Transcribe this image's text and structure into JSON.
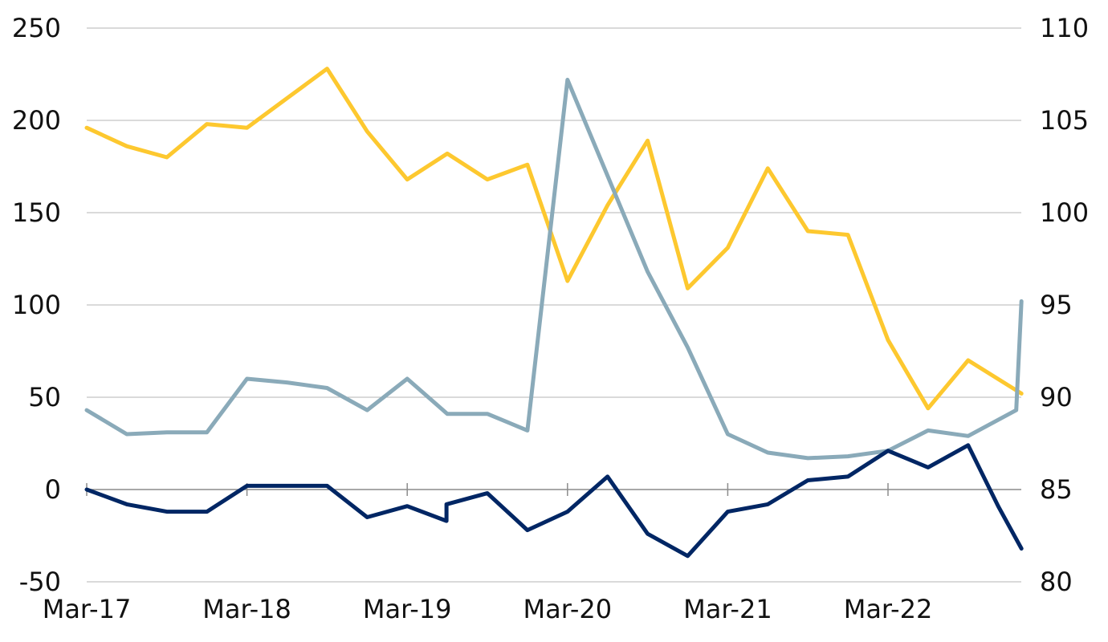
{
  "chart_data": {
    "type": "line",
    "title": "",
    "xlabel": "",
    "ylabel": "",
    "y_left_lim": [
      -50,
      250
    ],
    "y_left_ticks": [
      -50,
      0,
      50,
      100,
      150,
      200,
      250
    ],
    "y_right_lim": [
      80,
      110
    ],
    "y_right_ticks": [
      80,
      85,
      90,
      95,
      100,
      105,
      110
    ],
    "x_tick_labels": [
      "Mar-17",
      "Mar-18",
      "Mar-19",
      "Mar-20",
      "Mar-21",
      "Mar-22"
    ],
    "grid": true,
    "legend": "none",
    "series": [
      {
        "axis": "right",
        "color": "#FDC82F",
        "x": [
          0,
          1,
          2,
          3,
          4,
          5,
          6,
          7,
          8,
          9,
          10,
          11,
          12,
          13,
          14,
          15,
          16,
          17,
          18,
          19,
          20,
          21,
          22,
          23.33
        ],
        "values": [
          104.6,
          103.6,
          103.0,
          104.8,
          104.6,
          106.2,
          107.8,
          104.4,
          101.8,
          103.2,
          101.8,
          102.6,
          96.3,
          100.4,
          103.9,
          95.9,
          98.1,
          102.4,
          99.0,
          98.8,
          93.1,
          89.4,
          92.0,
          90.2
        ]
      },
      {
        "axis": "left",
        "color": "#8AAAB9",
        "x": [
          0,
          1,
          2,
          3,
          4,
          5,
          6,
          7,
          8,
          9,
          10,
          11,
          12,
          13,
          14,
          15,
          16,
          17,
          18,
          19,
          20,
          21,
          22,
          23.2,
          23.33
        ],
        "values": [
          43,
          30,
          31,
          31,
          60,
          58,
          55,
          43,
          60,
          41,
          41,
          32,
          222,
          170,
          118,
          77,
          30,
          20,
          17,
          18,
          21,
          32,
          29,
          43,
          102
        ]
      },
      {
        "axis": "left",
        "color": "#002664",
        "x": [
          0,
          1,
          2,
          3,
          4,
          5,
          6,
          7,
          8,
          8.98,
          8.98,
          10,
          11,
          12,
          13,
          14,
          15,
          16,
          17,
          18,
          19,
          20,
          21,
          22,
          22.75,
          23.33
        ],
        "values": [
          0,
          -8,
          -12,
          -12,
          2,
          2,
          2,
          -15,
          -9,
          -17,
          -8,
          -2,
          -22,
          -12,
          7,
          -24,
          -36,
          -12,
          -8,
          5,
          7,
          21,
          12,
          24,
          -9,
          -32
        ]
      }
    ]
  }
}
